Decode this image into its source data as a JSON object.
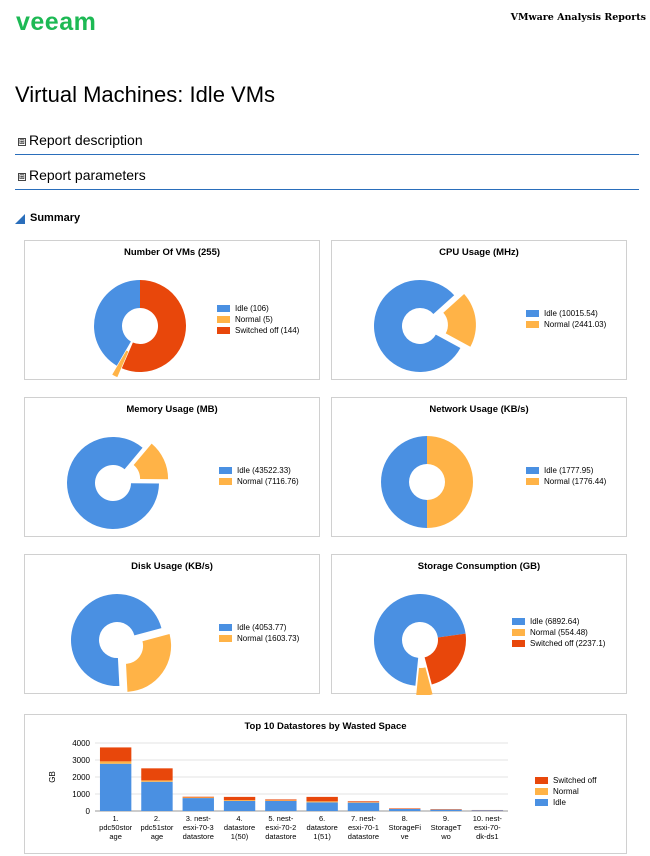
{
  "header": {
    "logo_text": "veeam",
    "report_name": "VMware Analysis Reports"
  },
  "page_title": "Virtual Machines: Idle VMs",
  "sections": [
    {
      "label": "Report description",
      "expander": "⊞"
    },
    {
      "label": "Report parameters",
      "expander": "⊞"
    }
  ],
  "summary_label": "Summary",
  "colors": {
    "idle": "#4a90e2",
    "normal": "#ffb347",
    "switched_off": "#e8470b"
  },
  "chart_data": [
    {
      "type": "pie",
      "title": "Number Of VMs (255)",
      "slices": [
        {
          "label": "Idle (106)",
          "value": 106,
          "color": "#4a90e2"
        },
        {
          "label": "Normal (5)",
          "value": 5,
          "color": "#ffb347"
        },
        {
          "label": "Switched off (144)",
          "value": 144,
          "color": "#e8470b"
        }
      ]
    },
    {
      "type": "pie",
      "title": "CPU Usage (MHz)",
      "slices": [
        {
          "label": "Idle (10015.54)",
          "value": 10015.54,
          "color": "#4a90e2"
        },
        {
          "label": "Normal (2441.03)",
          "value": 2441.03,
          "color": "#ffb347"
        }
      ]
    },
    {
      "type": "pie",
      "title": "Memory Usage (MB)",
      "slices": [
        {
          "label": "Idle (43522.33)",
          "value": 43522.33,
          "color": "#4a90e2"
        },
        {
          "label": "Normal (7116.76)",
          "value": 7116.76,
          "color": "#ffb347"
        }
      ]
    },
    {
      "type": "pie",
      "title": "Network Usage (KB/s)",
      "slices": [
        {
          "label": "Idle (1777.95)",
          "value": 1777.95,
          "color": "#4a90e2"
        },
        {
          "label": "Normal (1776.44)",
          "value": 1776.44,
          "color": "#ffb347"
        }
      ]
    },
    {
      "type": "pie",
      "title": "Disk Usage (KB/s)",
      "slices": [
        {
          "label": "Idle (4053.77)",
          "value": 4053.77,
          "color": "#4a90e2"
        },
        {
          "label": "Normal (1603.73)",
          "value": 1603.73,
          "color": "#ffb347"
        }
      ]
    },
    {
      "type": "pie",
      "title": "Storage Consumption (GB)",
      "slices": [
        {
          "label": "Idle (6892.64)",
          "value": 6892.64,
          "color": "#4a90e2"
        },
        {
          "label": "Normal (554.48)",
          "value": 554.48,
          "color": "#ffb347"
        },
        {
          "label": "Switched off (2237.1)",
          "value": 2237.1,
          "color": "#e8470b"
        }
      ]
    },
    {
      "type": "bar",
      "stacked": true,
      "title": "Top 10 Datastores by Wasted Space",
      "ylabel": "GB",
      "ylim": [
        0,
        4000
      ],
      "yticks": [
        0,
        1000,
        2000,
        3000,
        4000
      ],
      "categories": [
        [
          "1.",
          "pdc50stor",
          "age"
        ],
        [
          "2.",
          "pdc51stor",
          "age"
        ],
        [
          "3. nest-",
          "esxi-70-3",
          "datastore"
        ],
        [
          "4.",
          "datastore",
          "1(50)"
        ],
        [
          "5. nest-",
          "esxi-70-2",
          "datastore"
        ],
        [
          "6.",
          "datastore",
          "1(51)"
        ],
        [
          "7. nest-",
          "esxi-70-1",
          "datastore"
        ],
        [
          "8.",
          "StorageFi",
          "ve"
        ],
        [
          "9.",
          "StorageT",
          "wo"
        ],
        [
          "10. nest-",
          "esxi-70-",
          "dk-ds1"
        ]
      ],
      "series": [
        {
          "name": "Idle",
          "color": "#4a90e2",
          "values": [
            2780,
            1720,
            760,
            590,
            590,
            510,
            490,
            120,
            80,
            40
          ]
        },
        {
          "name": "Normal",
          "color": "#ffb347",
          "values": [
            140,
            80,
            40,
            50,
            40,
            60,
            30,
            10,
            5,
            5
          ]
        },
        {
          "name": "Switched off",
          "color": "#e8470b",
          "values": [
            820,
            710,
            40,
            190,
            50,
            260,
            50,
            30,
            25,
            15
          ]
        }
      ],
      "legend_order": [
        "Switched off",
        "Normal",
        "Idle"
      ]
    }
  ]
}
